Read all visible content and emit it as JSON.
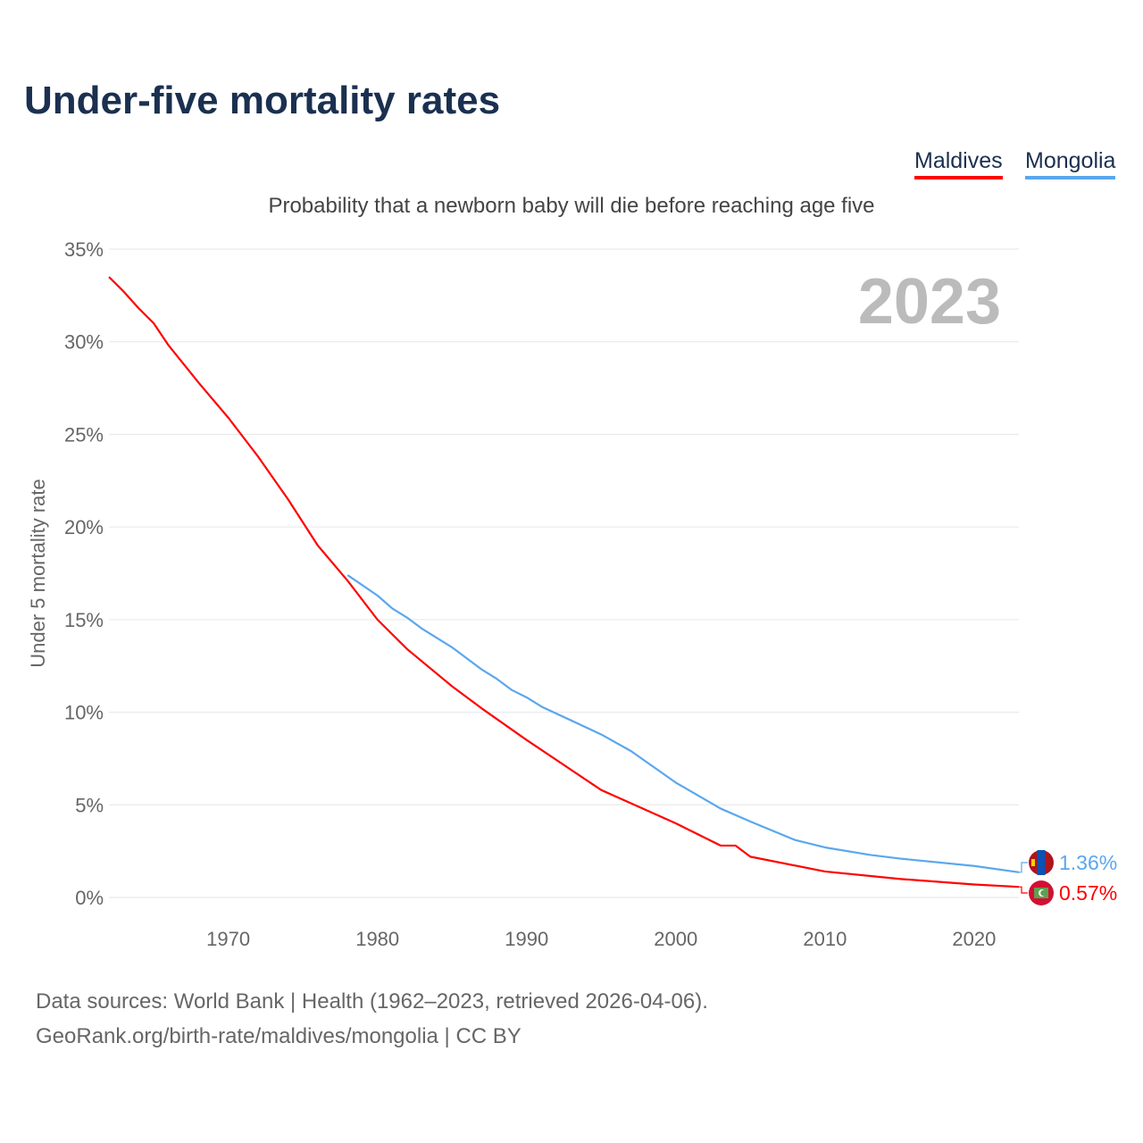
{
  "title": "Under-five mortality rates",
  "subtitle": "Probability that a newborn baby will die before reaching age five",
  "sources": [
    "Data sources: World Bank | Health (1962–2023, retrieved 2026-04-06).",
    "GeoRank.org/birth-rate/maldives/mongolia | CC BY"
  ],
  "chart_data": {
    "type": "line",
    "title": "Under-five mortality rates",
    "ylabel": "Under 5 mortality rate",
    "xlabel": "",
    "year_label": "2023",
    "ylim": [
      0,
      35
    ],
    "xlim": [
      1962,
      2023
    ],
    "yticks": [
      0,
      5,
      10,
      15,
      20,
      25,
      30,
      35
    ],
    "ytick_labels": [
      "0%",
      "5%",
      "10%",
      "15%",
      "20%",
      "25%",
      "30%",
      "35%"
    ],
    "xticks": [
      1970,
      1980,
      1990,
      2000,
      2010,
      2020
    ],
    "xtick_labels": [
      "1970",
      "1980",
      "1990",
      "2000",
      "2010",
      "2020"
    ],
    "grid": true,
    "legend_position": "top-right",
    "series": [
      {
        "name": "Maldives",
        "color": "#ff0000",
        "end_label": "0.57%",
        "flag": "maldives-flag",
        "x": [
          1962,
          1963,
          1964,
          1965,
          1966,
          1968,
          1970,
          1972,
          1974,
          1976,
          1978,
          1980,
          1982,
          1985,
          1987,
          1990,
          1995,
          2000,
          2003,
          2004,
          2005,
          2010,
          2015,
          2020,
          2023
        ],
        "y": [
          33.5,
          32.7,
          31.8,
          31.0,
          29.8,
          27.8,
          25.9,
          23.8,
          21.5,
          19.0,
          17.1,
          15.0,
          13.4,
          11.4,
          10.2,
          8.5,
          5.8,
          4.0,
          2.8,
          2.8,
          2.2,
          1.4,
          1.0,
          0.7,
          0.57
        ]
      },
      {
        "name": "Mongolia",
        "color": "#5aa7ee",
        "end_label": "1.36%",
        "flag": "mongolia-flag",
        "x": [
          1978,
          1980,
          1981,
          1982,
          1983,
          1985,
          1987,
          1988,
          1989,
          1990,
          1991,
          1995,
          1997,
          2000,
          2003,
          2005,
          2008,
          2010,
          2013,
          2015,
          2020,
          2023
        ],
        "y": [
          17.4,
          16.3,
          15.6,
          15.1,
          14.5,
          13.5,
          12.3,
          11.8,
          11.2,
          10.8,
          10.3,
          8.8,
          7.9,
          6.2,
          4.8,
          4.1,
          3.1,
          2.7,
          2.3,
          2.1,
          1.7,
          1.36
        ]
      }
    ]
  }
}
